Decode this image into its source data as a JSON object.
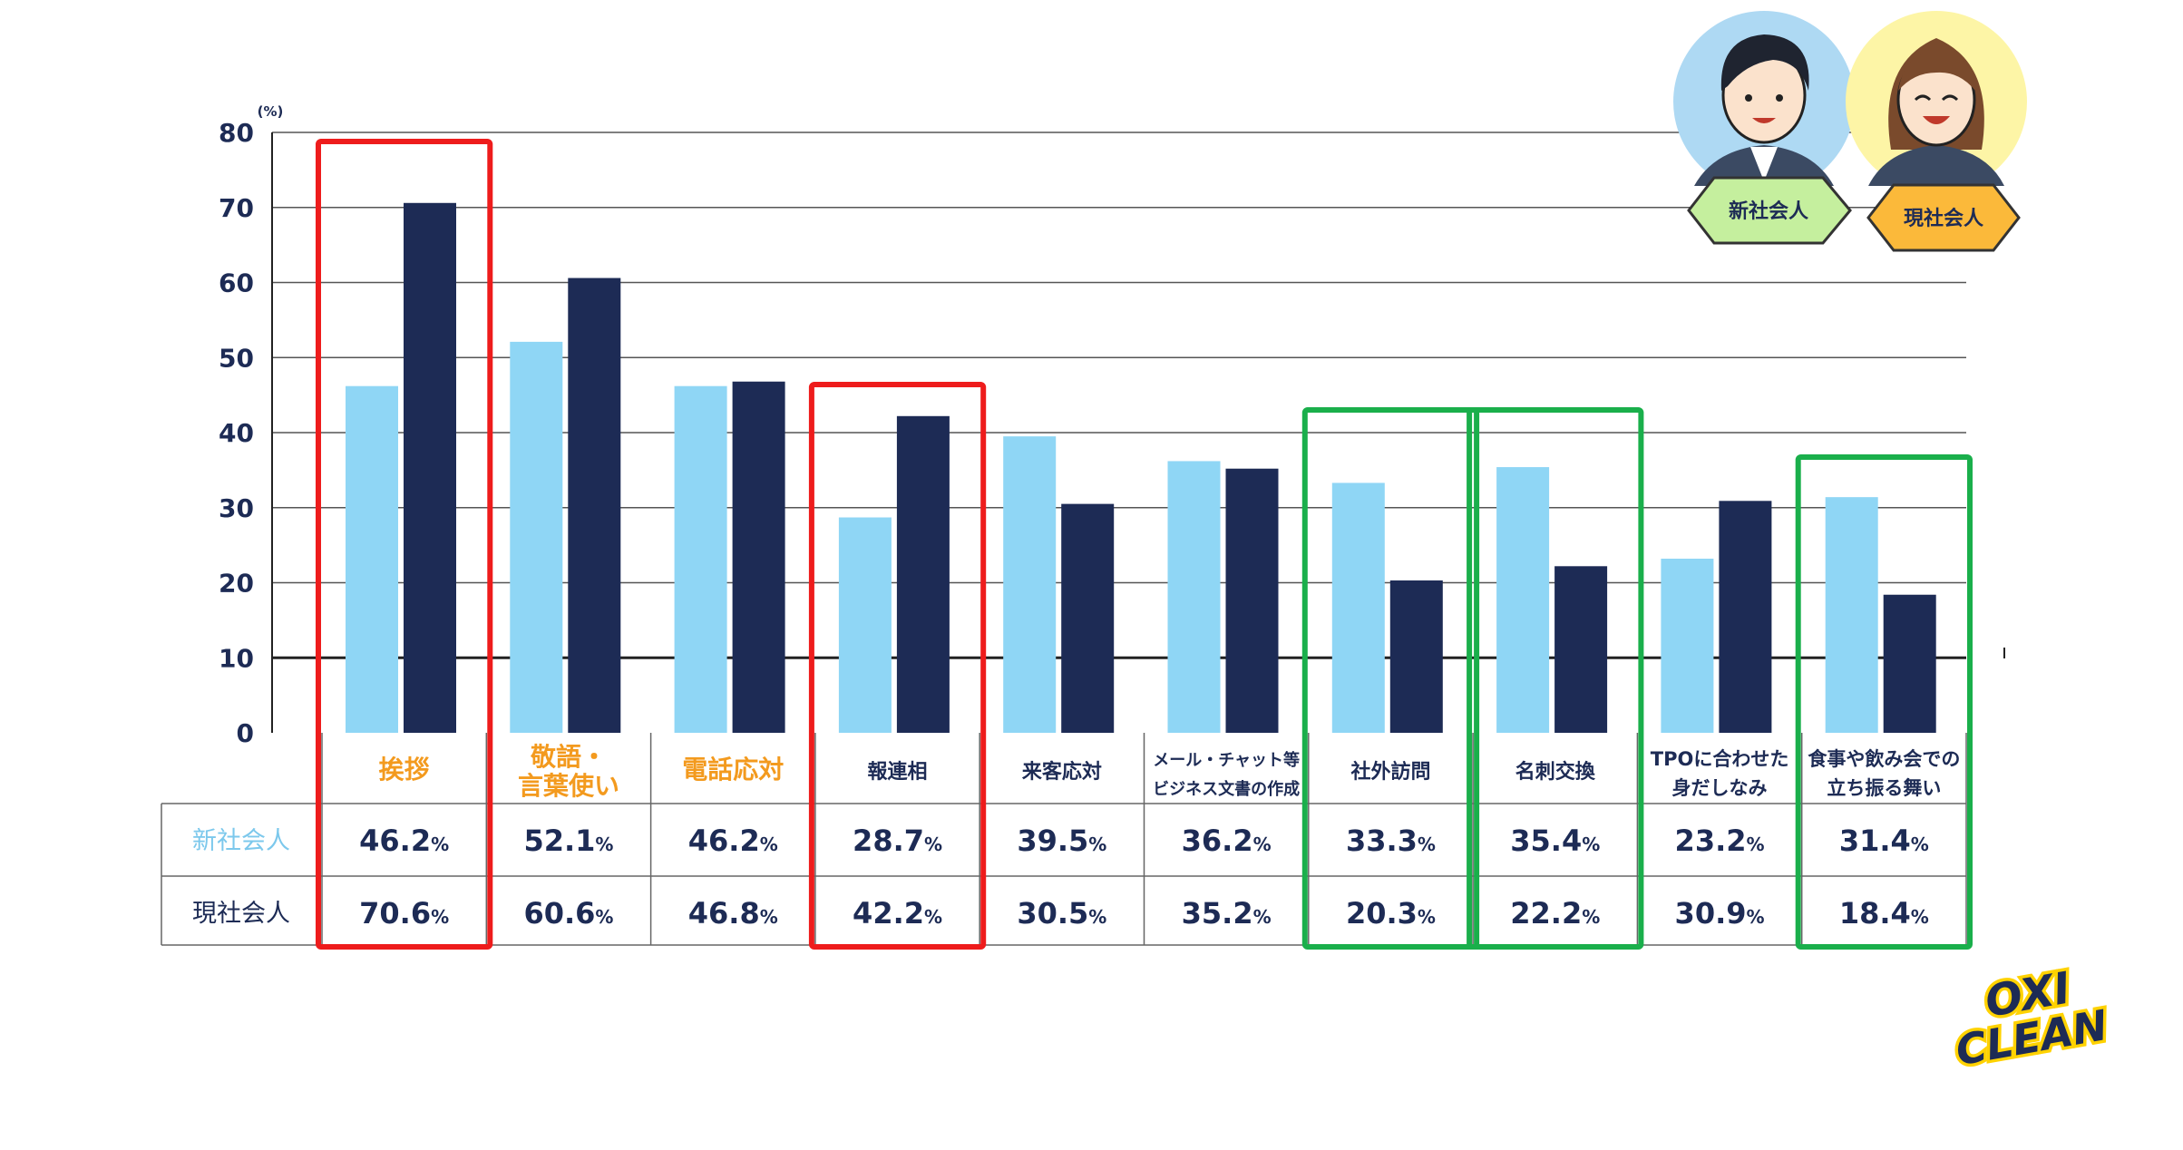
{
  "chart_data": {
    "type": "bar",
    "unit": "(%)",
    "ylim": [
      0,
      80
    ],
    "yticks": [
      "0",
      "10",
      "20",
      "30",
      "40",
      "50",
      "60",
      "70",
      "80"
    ],
    "categories": [
      [
        "挨拶"
      ],
      [
        "敬語・",
        "言葉使い"
      ],
      [
        "電話応対"
      ],
      [
        "報連相"
      ],
      [
        "来客応対"
      ],
      [
        "メール・チャット等",
        "ビジネス文書の作成"
      ],
      [
        "社外訪問"
      ],
      [
        "名刺交換"
      ],
      [
        "TPOに合わせた",
        "身だしなみ"
      ],
      [
        "食事や飲み会での",
        "立ち振る舞い"
      ]
    ],
    "highlight_orange": [
      0,
      1,
      2
    ],
    "series": [
      {
        "name": "新社会人",
        "color": "#8fd6f5",
        "values": [
          46.2,
          52.1,
          46.2,
          28.7,
          39.5,
          36.2,
          33.3,
          35.4,
          23.2,
          31.4
        ],
        "labels": [
          "46.2",
          "52.1",
          "46.2",
          "28.7",
          "39.5",
          "36.2",
          "33.3",
          "35.4",
          "23.2",
          "31.4"
        ]
      },
      {
        "name": "現社会人",
        "color": "#1d2b55",
        "values": [
          70.6,
          60.6,
          46.8,
          42.2,
          30.5,
          35.2,
          20.3,
          22.2,
          30.9,
          18.4
        ],
        "labels": [
          "70.6",
          "60.6",
          "46.8",
          "42.2",
          "30.5",
          "35.2",
          "20.3",
          "22.2",
          "30.9",
          "18.4"
        ]
      }
    ],
    "percent_sign": "%",
    "red_boxes": [
      [
        0
      ],
      [
        3
      ]
    ],
    "green_boxes": [
      [
        6
      ],
      [
        7
      ],
      [
        9
      ]
    ]
  },
  "legend": {
    "new_employee": "新社会人",
    "current_employee": "現社会人"
  },
  "logo": {
    "line1": "OXI",
    "line2": "CLEAN"
  },
  "colors": {
    "light_bar": "#8fd6f5",
    "dark_bar": "#1d2b55",
    "red_box": "#ee1c1c",
    "green_box": "#1aaf4b",
    "orange_label": "#f39a1e",
    "new_label": "#7cc8ec"
  }
}
